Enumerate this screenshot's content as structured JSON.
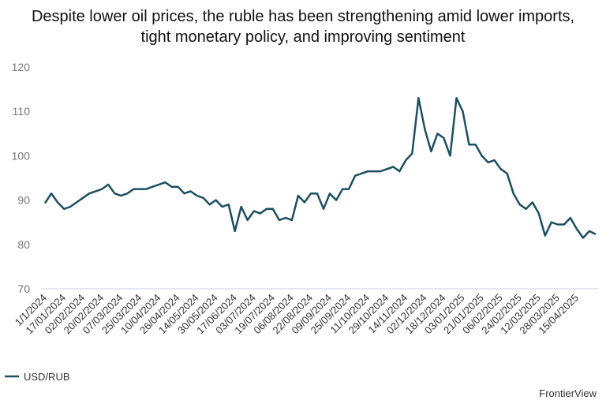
{
  "chart_data": {
    "type": "line",
    "title": "Despite lower oil prices, the ruble has been strengthening amid lower imports, tight monetary policy, and improving sentiment",
    "source": "FrontierView",
    "categories": [
      "1/1/2024",
      null,
      null,
      "17/01/2024",
      null,
      null,
      "02/02/2024",
      null,
      null,
      "20/02/2024",
      null,
      null,
      "07/03/2024",
      null,
      null,
      "25/03/2024",
      null,
      null,
      "10/04/2024",
      null,
      null,
      "26/04/2024",
      null,
      null,
      "14/05/2024",
      null,
      null,
      "30/05/2024",
      null,
      null,
      "17/06/2024",
      null,
      null,
      "03/07/2024",
      null,
      null,
      "19/07/2024",
      null,
      null,
      "06/08/2024",
      null,
      null,
      "22/08/2024",
      null,
      null,
      "09/09/2024",
      null,
      null,
      "25/09/2024",
      null,
      null,
      "11/10/2024",
      null,
      null,
      "29/10/2024",
      null,
      null,
      "14/11/2024",
      null,
      null,
      "02/12/2024",
      null,
      null,
      "18/12/2024",
      null,
      null,
      "03/01/2025",
      null,
      null,
      "21/01/2025",
      null,
      null,
      "06/02/2025",
      null,
      null,
      "24/02/2025",
      null,
      null,
      "12/03/2025",
      null,
      null,
      "28/03/2025",
      null,
      null,
      "15/04/2025",
      null,
      null,
      null
    ],
    "series": [
      {
        "name": "USD/RUB",
        "color": "#1b4f63",
        "values": [
          89.3,
          91.5,
          89.5,
          88,
          88.5,
          89.5,
          90.5,
          91.5,
          92,
          92.5,
          93.5,
          91.5,
          91,
          91.5,
          92.5,
          92.5,
          92.5,
          93,
          93.5,
          94,
          93,
          93,
          91.5,
          92,
          91,
          90.5,
          89,
          90,
          88.5,
          89,
          83,
          88.5,
          85.5,
          87.5,
          87,
          88,
          88,
          85.5,
          86,
          85.5,
          91,
          89.5,
          91.5,
          91.5,
          88,
          91.5,
          90,
          92.5,
          92.5,
          95.5,
          96,
          96.5,
          96.5,
          96.5,
          97,
          97.5,
          96.5,
          99,
          100.5,
          113,
          106,
          101,
          105,
          104,
          100,
          113,
          110,
          102.5,
          102.5,
          100,
          98.5,
          99,
          97,
          96,
          91.5,
          89,
          88,
          89.5,
          87,
          82,
          85,
          84.5,
          84.5,
          86,
          83.5,
          81.5,
          83,
          82.3
        ]
      }
    ],
    "ylim": [
      70,
      120
    ],
    "yticks": [
      70,
      80,
      90,
      100,
      110,
      120
    ],
    "grid": false
  }
}
